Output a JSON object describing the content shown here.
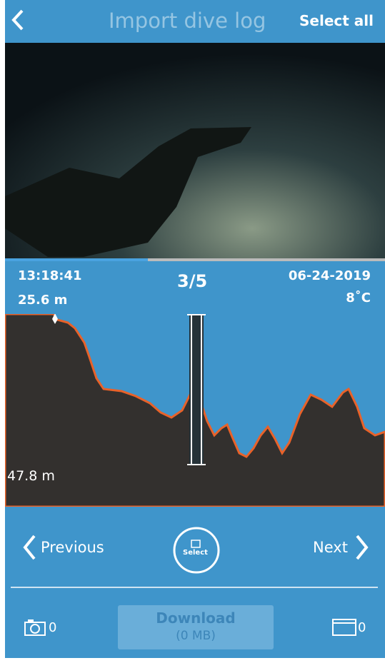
{
  "header": {
    "title": "Import dive log",
    "select_all": "Select all"
  },
  "dive": {
    "time": "13:18:41",
    "depth": "25.6 m",
    "index": "3/5",
    "date": "06-24-2019",
    "temperature": "8˚C"
  },
  "profile": {
    "max_depth": "47.8 m"
  },
  "nav": {
    "previous": "Previous",
    "select": "Select",
    "next": "Next"
  },
  "footer": {
    "photos": "0",
    "download": "Download",
    "size": "(0 MB)",
    "videos": "0"
  }
}
